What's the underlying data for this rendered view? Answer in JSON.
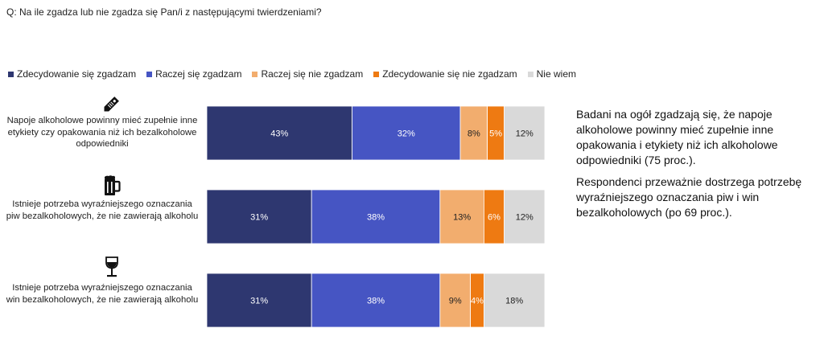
{
  "question": "Q: Na ile zgadza lub nie zgadza się Pan/i z następującymi twierdzeniami?",
  "chart_data": {
    "type": "bar",
    "orientation": "horizontal",
    "stacked": true,
    "value_suffix": "%",
    "categories": [
      "Napoje alkoholowe powinny mieć zupełnie inne etykiety czy opakowania niż ich bezalkoholowe odpowiedniki",
      "Istnieje potrzeba wyraźniejszego oznaczania piw bezalkoholowych, że nie zawierają alkoholu",
      "Istnieje potrzeba wyraźniejszego oznaczania win bezalkoholowych, że nie zawierają alkoholu"
    ],
    "category_icons": [
      "price-tag-icon",
      "beer-mug-icon",
      "wine-glass-icon"
    ],
    "series": [
      {
        "name": "Zdecydowanie się zgadzam",
        "color": "#2e3770",
        "label_color": "#ffffff",
        "values": [
          43,
          31,
          31
        ]
      },
      {
        "name": "Raczej się zgadzam",
        "color": "#4655c3",
        "label_color": "#ffffff",
        "values": [
          32,
          38,
          38
        ]
      },
      {
        "name": "Raczej się nie zgadzam",
        "color": "#f2ad6e",
        "label_color": "#222222",
        "values": [
          8,
          13,
          9
        ]
      },
      {
        "name": "Zdecydowanie się nie zgadzam",
        "color": "#ee7a12",
        "label_color": "#ffffff",
        "values": [
          5,
          6,
          4
        ]
      },
      {
        "name": "Nie wiem",
        "color": "#d9d9d9",
        "label_color": "#222222",
        "values": [
          12,
          12,
          18
        ]
      }
    ],
    "legend_position": "top-left",
    "grid": false
  },
  "notes": [
    "Badani na ogół zgadzają się, że napoje alkoholowe powinny mieć zupełnie inne opakowania i etykiety niż ich alkoholowe odpowiedniki (75 proc.).",
    "Respondenci przeważnie dostrzega potrzebę wyraźniejszego oznaczania piw i win bezalkoholowych (po 69 proc.)."
  ]
}
